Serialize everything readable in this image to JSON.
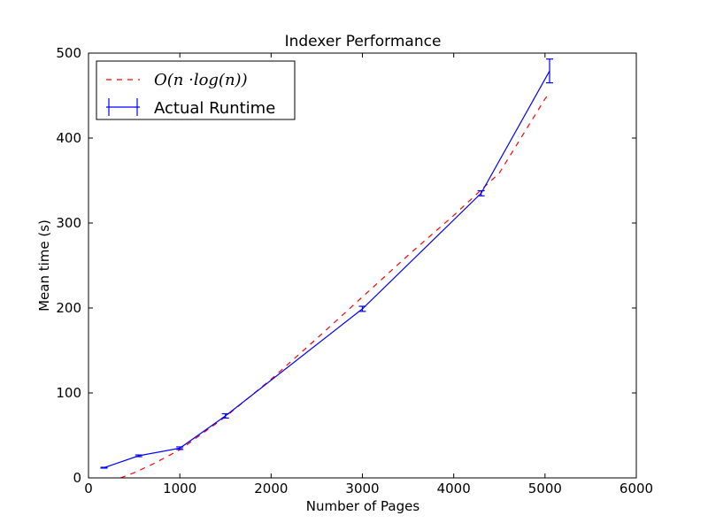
{
  "chart_data": {
    "type": "line",
    "title": "Indexer Performance",
    "xlabel": "Number of Pages",
    "ylabel": "Mean time (s)",
    "xlim": [
      0,
      6000
    ],
    "ylim": [
      0,
      500
    ],
    "xticks": [
      0,
      1000,
      2000,
      3000,
      4000,
      5000,
      6000
    ],
    "yticks": [
      0,
      100,
      200,
      300,
      400,
      500
    ],
    "grid": false,
    "legend_position": "top-left",
    "series": [
      {
        "name": "O(n ·log(n))",
        "style": "dashed",
        "color": "#ff0000",
        "x": [
          350,
          500,
          700,
          1000,
          1500,
          2000,
          2500,
          3000,
          3500,
          4000,
          4500,
          5000,
          5050
        ],
        "y": [
          0,
          6,
          16,
          33,
          72,
          116,
          164,
          213,
          262,
          309,
          359,
          446,
          453
        ]
      },
      {
        "name": "Actual Runtime",
        "style": "solid",
        "color": "#0000ff",
        "error_bars": true,
        "x": [
          170,
          550,
          1000,
          1500,
          3000,
          4300,
          5050
        ],
        "y": [
          12,
          26,
          35,
          73,
          199,
          335,
          479
        ],
        "yerr": [
          0.5,
          1,
          1.5,
          2.5,
          3,
          3,
          14
        ]
      }
    ]
  }
}
